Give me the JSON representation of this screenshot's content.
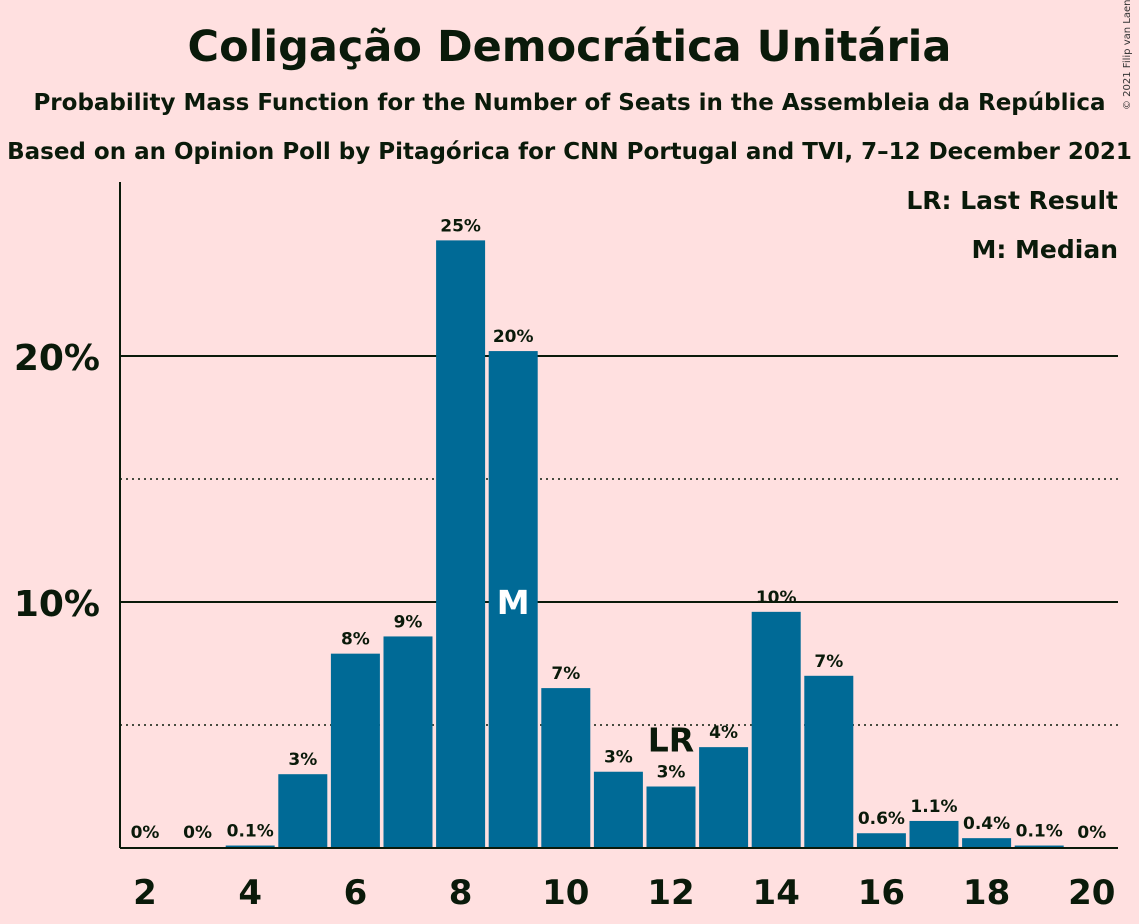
{
  "title": "Coligação Democrática Unitária",
  "subtitle": "Probability Mass Function for the Number of Seats in the Assembleia da República",
  "subtitle2": "Based on an Opinion Poll by Pitagórica for CNN Portugal and TVI, 7–12 December 2021",
  "copyright": "© 2021 Filip van Laenen",
  "legend": {
    "last_result": "LR: Last Result",
    "median": "M: Median"
  },
  "colors": {
    "bar": "#006a96",
    "background": "#ffe0e0",
    "text": "#0a1a0a"
  },
  "chart_data": {
    "type": "bar",
    "xlim": [
      2,
      20
    ],
    "ylim": [
      0,
      27
    ],
    "x_ticks": [
      2,
      4,
      6,
      8,
      10,
      12,
      14,
      16,
      18,
      20
    ],
    "y_ticks_major": [
      10,
      20
    ],
    "y_ticks_minor": [
      5,
      15
    ],
    "y_tick_labels": [
      "10%",
      "20%"
    ],
    "last_result_seat": 12,
    "last_result_label": "LR",
    "median_seat": 9,
    "median_label": "M",
    "bars": [
      {
        "seats": 2,
        "value": 0,
        "label": "0%"
      },
      {
        "seats": 3,
        "value": 0,
        "label": "0%"
      },
      {
        "seats": 4,
        "value": 0.1,
        "label": "0.1%"
      },
      {
        "seats": 5,
        "value": 3.0,
        "label": "3%"
      },
      {
        "seats": 6,
        "value": 7.9,
        "label": "8%"
      },
      {
        "seats": 7,
        "value": 8.6,
        "label": "9%"
      },
      {
        "seats": 8,
        "value": 24.7,
        "label": "25%"
      },
      {
        "seats": 9,
        "value": 20.2,
        "label": "20%"
      },
      {
        "seats": 10,
        "value": 6.5,
        "label": "7%"
      },
      {
        "seats": 11,
        "value": 3.1,
        "label": "3%"
      },
      {
        "seats": 12,
        "value": 2.5,
        "label": "3%"
      },
      {
        "seats": 13,
        "value": 4.1,
        "label": "4%"
      },
      {
        "seats": 14,
        "value": 9.6,
        "label": "10%"
      },
      {
        "seats": 15,
        "value": 7.0,
        "label": "7%"
      },
      {
        "seats": 16,
        "value": 0.6,
        "label": "0.6%"
      },
      {
        "seats": 17,
        "value": 1.1,
        "label": "1.1%"
      },
      {
        "seats": 18,
        "value": 0.4,
        "label": "0.4%"
      },
      {
        "seats": 19,
        "value": 0.1,
        "label": "0.1%"
      },
      {
        "seats": 20,
        "value": 0,
        "label": "0%"
      }
    ]
  }
}
